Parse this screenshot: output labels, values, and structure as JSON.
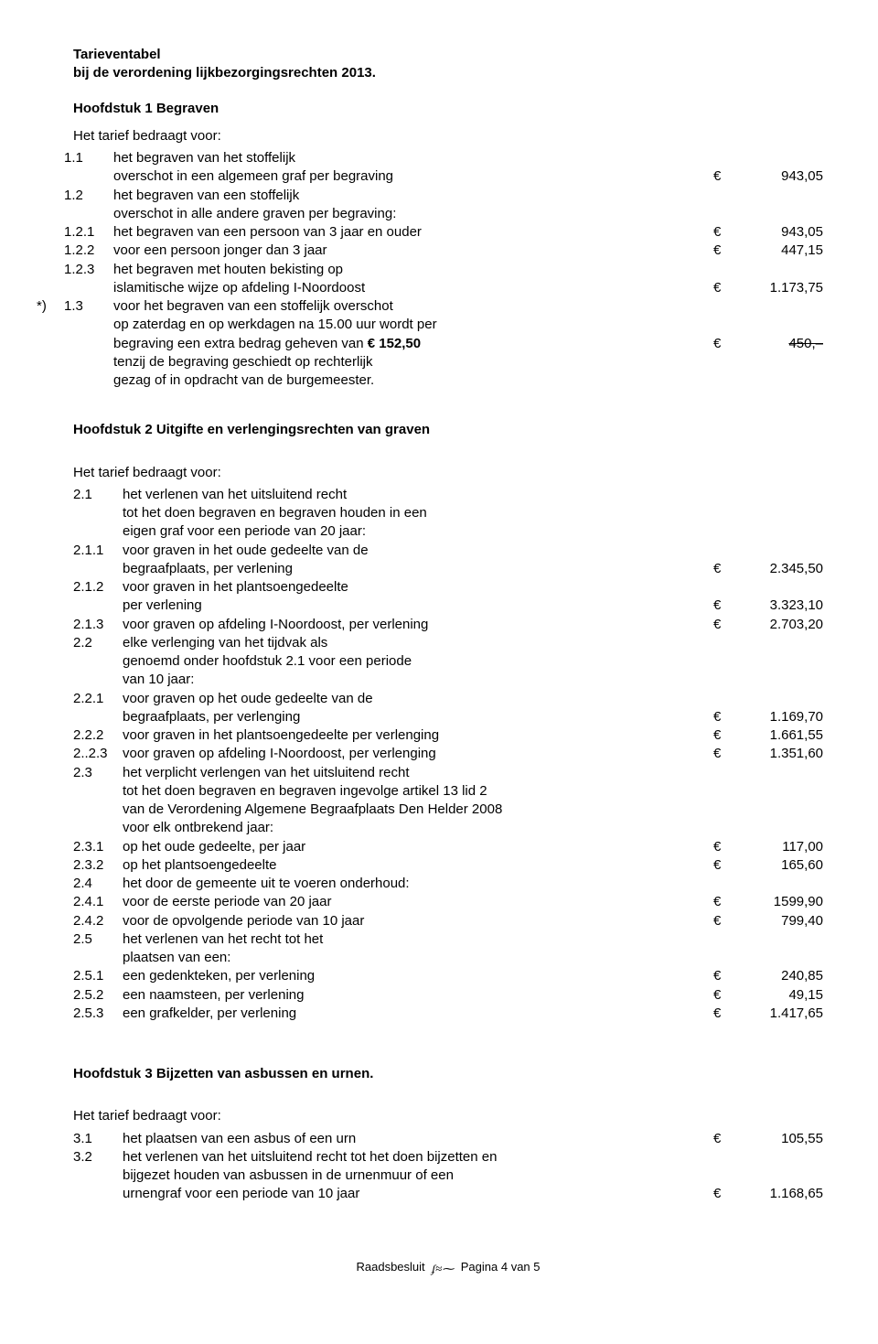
{
  "title1": "Tarieventabel",
  "title2": "bij de verordening lijkbezorgingsrechten 2013.",
  "chapter1": {
    "heading": "Hoofdstuk 1 Begraven",
    "intro": "Het tarief bedraagt voor:",
    "items": [
      {
        "marker": "",
        "num": "1.1",
        "text": "het begraven van het stoffelijk",
        "cur": "",
        "amt": ""
      },
      {
        "marker": "",
        "num": "",
        "text": "overschot in een algemeen graf per begraving",
        "cur": "€",
        "amt": "943,05"
      },
      {
        "marker": "",
        "num": "1.2",
        "text": "het begraven van een stoffelijk",
        "cur": "",
        "amt": ""
      },
      {
        "marker": "",
        "num": "",
        "text": "overschot in alle andere graven per begraving:",
        "cur": "",
        "amt": ""
      },
      {
        "marker": "",
        "num": "1.2.1",
        "text": "het begraven van een persoon van 3 jaar en ouder",
        "cur": "€",
        "amt": "943,05"
      },
      {
        "marker": "",
        "num": "1.2.2",
        "text": "voor een persoon jonger dan 3 jaar",
        "cur": "€",
        "amt": "447,15"
      },
      {
        "marker": "",
        "num": "1.2.3",
        "text": "het begraven met houten bekisting op",
        "cur": "",
        "amt": ""
      },
      {
        "marker": "",
        "num": "",
        "text": "islamitische wijze op afdeling I-Noordoost",
        "cur": "€",
        "amt": "1.173,75"
      },
      {
        "marker": "*)",
        "num": "1.3",
        "text": "voor het begraven van een stoffelijk overschot",
        "cur": "",
        "amt": ""
      },
      {
        "marker": "",
        "num": "",
        "text": "op zaterdag en op werkdagen na 15.00 uur wordt per",
        "cur": "",
        "amt": ""
      },
      {
        "marker": "",
        "num": "",
        "text": "begraving een extra bedrag geheven van € 152,50",
        "cur": "€",
        "amt": "450,–",
        "strike": true,
        "boldPart": "€ 152,50"
      },
      {
        "marker": "",
        "num": "",
        "text": "tenzij de begraving geschiedt op rechterlijk",
        "cur": "",
        "amt": ""
      },
      {
        "marker": "",
        "num": "",
        "text": "gezag of in opdracht van de burgemeester.",
        "cur": "",
        "amt": ""
      }
    ]
  },
  "chapter2": {
    "heading": "Hoofdstuk 2 Uitgifte en verlengingsrechten van graven",
    "intro": "Het tarief bedraagt voor:",
    "items": [
      {
        "num": "2.1",
        "text": "het verlenen van het uitsluitend recht",
        "cur": "",
        "amt": ""
      },
      {
        "num": "",
        "text": "tot het doen begraven en begraven houden in een",
        "cur": "",
        "amt": ""
      },
      {
        "num": "",
        "text": "eigen graf voor een periode van 20 jaar:",
        "cur": "",
        "amt": ""
      },
      {
        "num": "2.1.1",
        "text": "voor graven in het oude gedeelte van de",
        "cur": "",
        "amt": ""
      },
      {
        "num": "",
        "text": "begraafplaats, per verlening",
        "cur": "€",
        "amt": "2.345,50"
      },
      {
        "num": "2.1.2",
        "text": "voor graven in het plantsoengedeelte",
        "cur": "",
        "amt": ""
      },
      {
        "num": "",
        "text": "per verlening",
        "cur": "€",
        "amt": "3.323,10"
      },
      {
        "num": "2.1.3",
        "text": "voor graven op afdeling I-Noordoost, per verlening",
        "cur": "€",
        "amt": "2.703,20"
      },
      {
        "num": "2.2",
        "text": "elke verlenging van het tijdvak als",
        "cur": "",
        "amt": ""
      },
      {
        "num": "",
        "text": "genoemd onder hoofdstuk 2.1 voor een periode",
        "cur": "",
        "amt": ""
      },
      {
        "num": "",
        "text": "van 10 jaar:",
        "cur": "",
        "amt": ""
      },
      {
        "num": "2.2.1",
        "text": "voor graven op het oude gedeelte van de",
        "cur": "",
        "amt": ""
      },
      {
        "num": "",
        "text": "begraafplaats, per verlenging",
        "cur": "€",
        "amt": "1.169,70"
      },
      {
        "num": "2.2.2",
        "text": "voor graven in het plantsoengedeelte per verlenging",
        "cur": "€",
        "amt": "1.661,55"
      },
      {
        "num": "2..2.3",
        "text": "voor graven op afdeling I-Noordoost, per verlenging",
        "cur": "€",
        "amt": "1.351,60"
      },
      {
        "num": "2.3",
        "text": "het verplicht verlengen van het uitsluitend recht",
        "cur": "",
        "amt": ""
      },
      {
        "num": "",
        "text": "tot het doen begraven en begraven ingevolge artikel 13 lid 2",
        "cur": "",
        "amt": ""
      },
      {
        "num": "",
        "text": "van de Verordening Algemene Begraafplaats Den Helder 2008",
        "cur": "",
        "amt": ""
      },
      {
        "num": "",
        "text": "voor elk ontbrekend jaar:",
        "cur": "",
        "amt": ""
      },
      {
        "num": "2.3.1",
        "text": "op het oude gedeelte, per jaar",
        "cur": "€",
        "amt": "117,00"
      },
      {
        "num": "2.3.2",
        "text": "op het plantsoengedeelte",
        "cur": "€",
        "amt": "165,60"
      },
      {
        "num": "2.4",
        "text": "het door de gemeente uit te voeren onderhoud:",
        "cur": "",
        "amt": ""
      },
      {
        "num": "2.4.1",
        "text": "voor de eerste periode van 20 jaar",
        "cur": "€",
        "amt": "1599,90"
      },
      {
        "num": "2.4.2",
        "text": "voor de opvolgende periode van 10 jaar",
        "cur": "€",
        "amt": "799,40"
      },
      {
        "num": "2.5",
        "text": "het verlenen van het recht tot het",
        "cur": "",
        "amt": ""
      },
      {
        "num": "",
        "text": "plaatsen van een:",
        "cur": "",
        "amt": ""
      },
      {
        "num": "2.5.1",
        "text": "een gedenkteken, per verlening",
        "cur": "€",
        "amt": "240,85"
      },
      {
        "num": "2.5.2",
        "text": "een naamsteen, per verlening",
        "cur": "€",
        "amt": "49,15"
      },
      {
        "num": "2.5.3",
        "text": "een grafkelder, per verlening",
        "cur": "€",
        "amt": "1.417,65"
      }
    ]
  },
  "chapter3": {
    "heading": "Hoofdstuk 3 Bijzetten van asbussen en urnen.",
    "intro": "Het tarief bedraagt voor:",
    "items": [
      {
        "num": "3.1",
        "text": "het plaatsen van een asbus of een urn",
        "cur": "€",
        "amt": "105,55"
      },
      {
        "num": "3.2",
        "text": "het verlenen van het uitsluitend recht tot het doen bijzetten en",
        "cur": "",
        "amt": ""
      },
      {
        "num": "",
        "text": "bijgezet houden van asbussen in de urnenmuur of een",
        "cur": "",
        "amt": ""
      },
      {
        "num": "",
        "text": "urnengraf voor een periode van 10 jaar",
        "cur": "€",
        "amt": "1.168,65"
      }
    ]
  },
  "footer": {
    "left": "Raadsbesluit",
    "right": "Pagina 4 van 5"
  }
}
